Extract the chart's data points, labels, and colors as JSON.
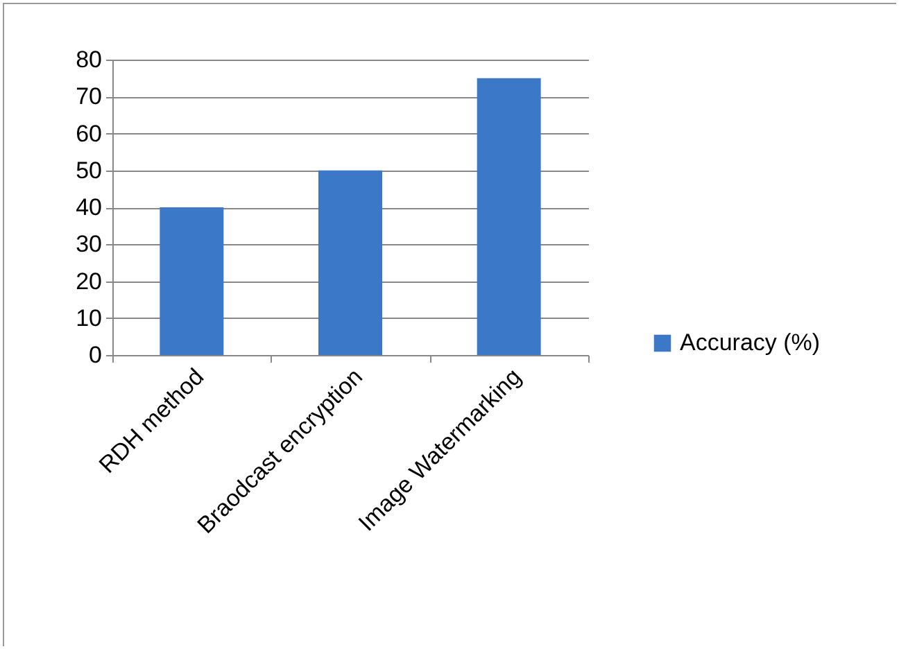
{
  "chart_data": {
    "type": "bar",
    "categories": [
      "RDH method",
      "Braodcast encryption",
      "Image Watermarking"
    ],
    "series": [
      {
        "name": "Accuracy (%)",
        "color": "#3c78c8",
        "values": [
          40,
          50,
          75
        ]
      }
    ],
    "ylim": [
      0,
      80
    ],
    "yticks": [
      0,
      10,
      20,
      30,
      40,
      50,
      60,
      70,
      80
    ],
    "grid": "y",
    "legend": "right"
  }
}
